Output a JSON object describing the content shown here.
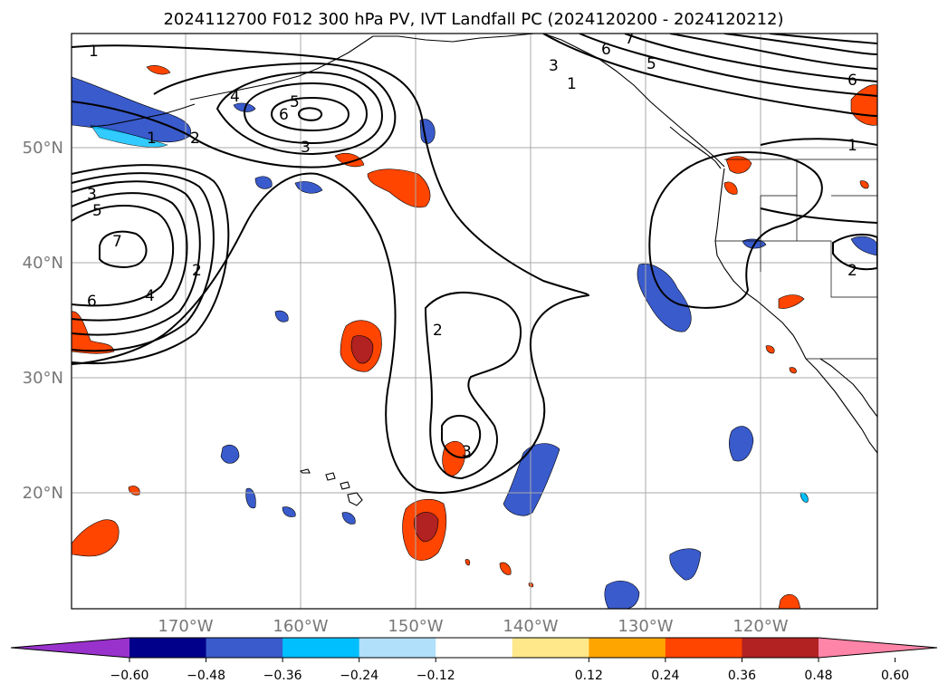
{
  "title": "2024112700 F012 300 hPa PV, IVT Landfall PC (2024120200 - 2024120212)",
  "lat_labels": [
    "50°N",
    "40°N",
    "30°N",
    "20°N"
  ],
  "lon_labels": [
    "170°W",
    "160°W",
    "150°W",
    "140°W",
    "130°W",
    "120°W"
  ],
  "colorbar": {
    "ticks": [
      "−0.60",
      "−0.48",
      "−0.36",
      "−0.24",
      "−0.12",
      "0.12",
      "0.24",
      "0.36",
      "0.48",
      "0.60"
    ],
    "colors": [
      "#9932cc",
      "#00008b",
      "#3a5bcc",
      "#00bfff",
      "#b0e0fa",
      "#ffffff",
      "#ffe88a",
      "#ffa500",
      "#ff4500",
      "#b22222",
      "#ff85a8"
    ]
  },
  "contour_labels": [
    "1",
    "2",
    "3",
    "4",
    "5",
    "6",
    "7",
    "1",
    "2",
    "3",
    "4",
    "5",
    "6",
    "7",
    "1",
    "3",
    "5",
    "6",
    "7",
    "1",
    "2",
    "6",
    "2",
    "3",
    "2"
  ],
  "colors": {
    "grid": "#aaaaaa",
    "tick_label": "#777777",
    "contour": "#000000",
    "coast": "#000000"
  }
}
